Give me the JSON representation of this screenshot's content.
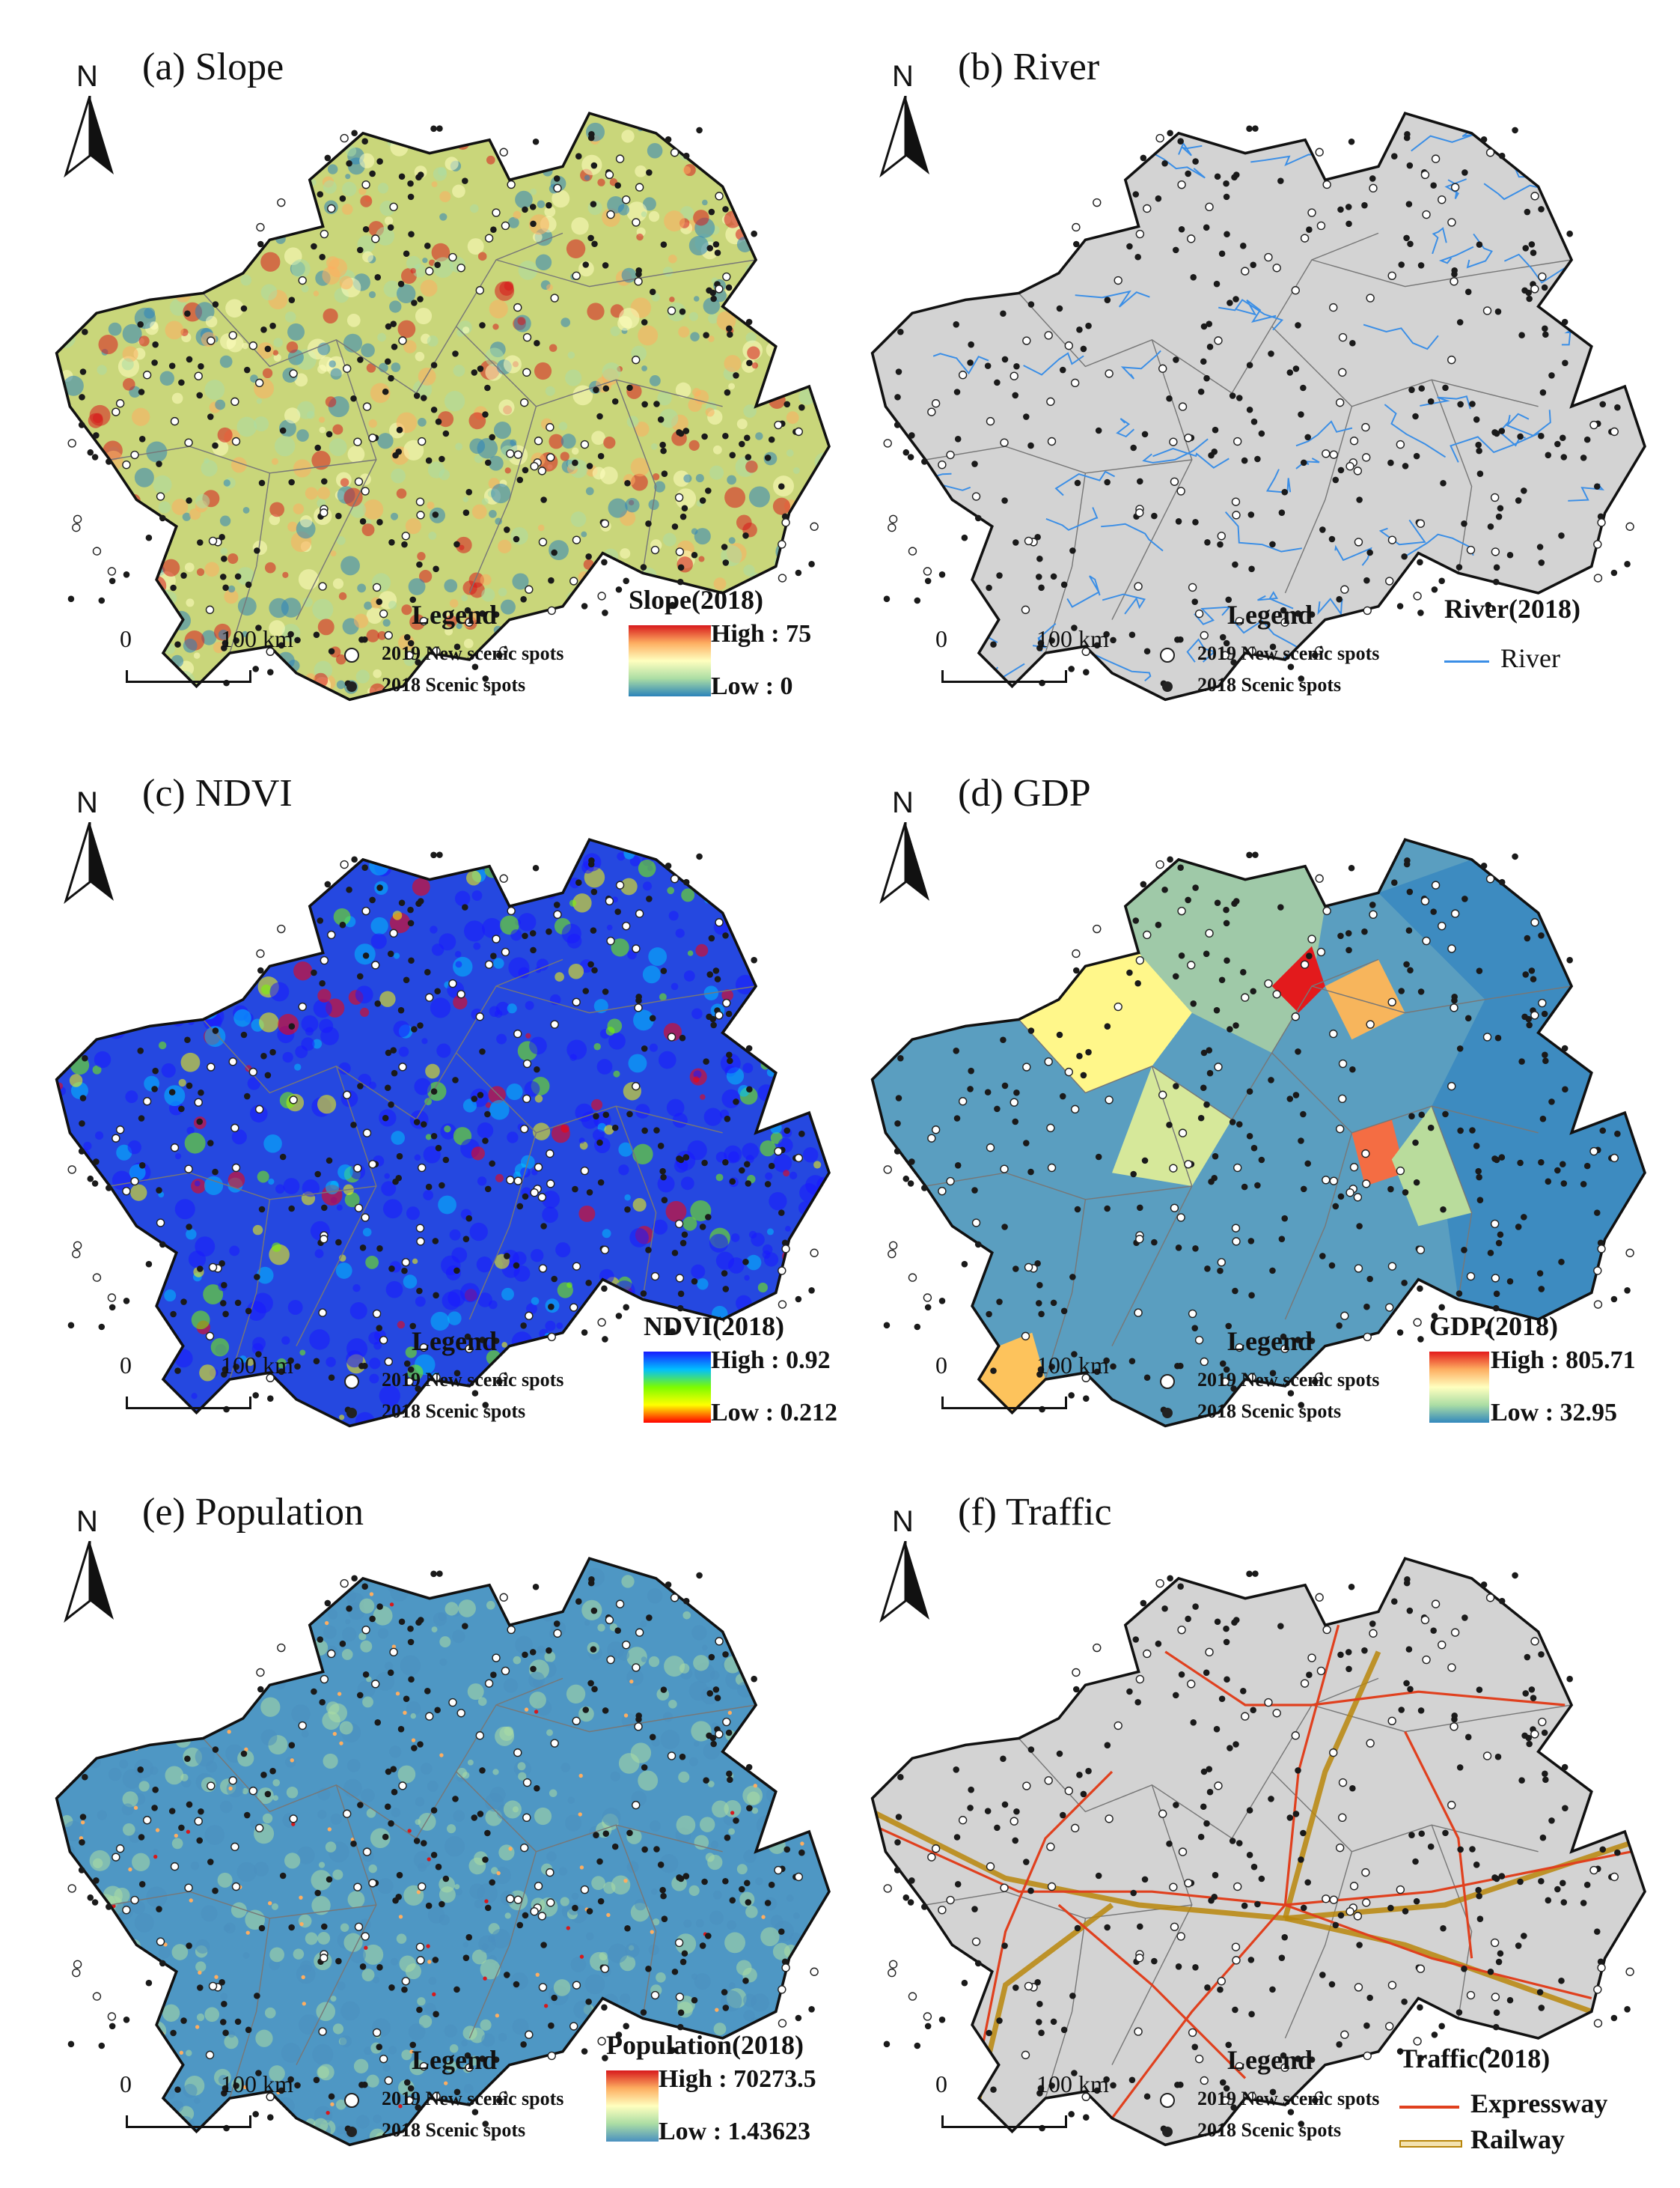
{
  "panels": [
    {
      "title": "(a) Slope",
      "north": "N",
      "scale": {
        "start": "0",
        "end": "100 km"
      },
      "legend": {
        "title": "Legend",
        "new": "2019 New scenic spots",
        "old": "2018 Scenic spots"
      },
      "layer": {
        "title": "Slope(2018)",
        "high": "High : 75",
        "low": "Low : 0",
        "colors": [
          "#d7191c",
          "#fdae61",
          "#ffffbf",
          "#abdda4",
          "#2b83ba"
        ]
      },
      "base_color": "#c9d67a"
    },
    {
      "title": "(b) River",
      "north": "N",
      "scale": {
        "start": "0",
        "end": "100 km"
      },
      "legend": {
        "title": "Legend",
        "new": "2019 New scenic spots",
        "old": "2018 Scenic spots"
      },
      "layer": {
        "title": "River(2018)",
        "line_label": "River",
        "line_color": "#3a8ee6"
      },
      "base_color": "#d3d3d3"
    },
    {
      "title": "(c) NDVI",
      "north": "N",
      "scale": {
        "start": "0",
        "end": "100 km"
      },
      "legend": {
        "title": "Legend",
        "new": "2019 New scenic spots",
        "old": "2018 Scenic spots"
      },
      "layer": {
        "title": "NDVI(2018)",
        "high": "High : 0.92",
        "low": "Low : 0.212",
        "colors": [
          "#1a1aff",
          "#00bfff",
          "#7cfc00",
          "#ffff00",
          "#ff0000"
        ]
      },
      "base_color": "#2548e0"
    },
    {
      "title": "(d) GDP",
      "north": "N",
      "scale": {
        "start": "0",
        "end": "100 km"
      },
      "legend": {
        "title": "Legend",
        "new": "2019 New scenic spots",
        "old": "2018 Scenic spots"
      },
      "layer": {
        "title": "GDP(2018)",
        "high": "High : 805.71",
        "low": "Low : 32.95",
        "colors": [
          "#e31a1c",
          "#fdae61",
          "#ffffbf",
          "#abdda4",
          "#3288bd"
        ]
      },
      "base_color": "#5a9ec0"
    },
    {
      "title": "(e) Population",
      "north": "N",
      "scale": {
        "start": "0",
        "end": "100 km"
      },
      "legend": {
        "title": "Legend",
        "new": "2019 New scenic spots",
        "old": "2018 Scenic spots"
      },
      "layer": {
        "title": "Population(2018)",
        "high": "High : 70273.5",
        "low": "Low : 1.43623",
        "colors": [
          "#d7191c",
          "#fdae61",
          "#ffffbf",
          "#abdda4",
          "#4a90c0"
        ]
      },
      "base_color": "#4e97c4"
    },
    {
      "title": "(f) Traffic",
      "north": "N",
      "scale": {
        "start": "0",
        "end": "100 km"
      },
      "legend": {
        "title": "Legend",
        "new": "2019 New scenic spots",
        "old": "2018 Scenic spots"
      },
      "layer": {
        "title": "Traffic(2018)",
        "expressway": "Expressway",
        "railway": "Railway",
        "expressway_color": "#e0401e",
        "railway_color": "#b8860b"
      },
      "base_color": "#d3d3d3"
    }
  ]
}
